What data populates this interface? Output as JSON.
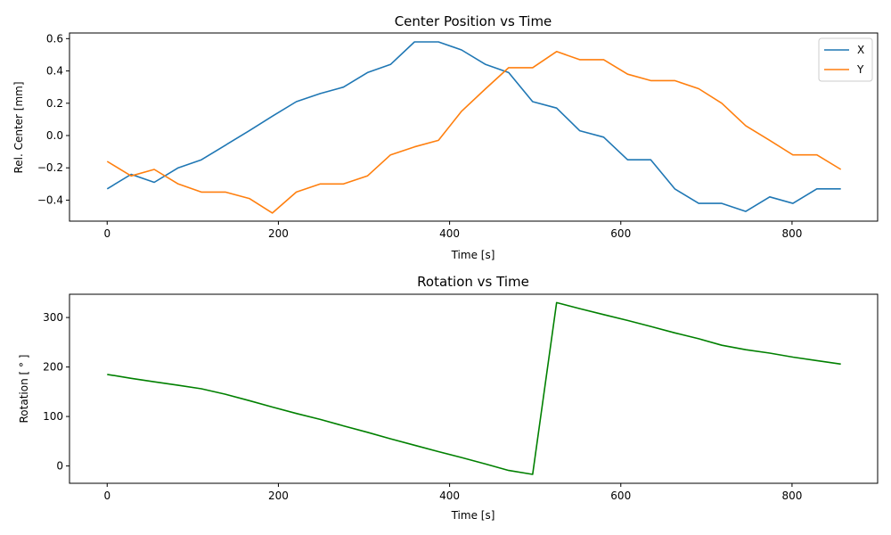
{
  "chart_data": [
    {
      "type": "line",
      "title": "Center Position vs Time",
      "xlabel": "Time [s]",
      "ylabel": "Rel. Center [mm]",
      "xlim": [
        -44,
        900
      ],
      "ylim": [
        -0.53,
        0.635
      ],
      "xticks": [
        0,
        200,
        400,
        600,
        800
      ],
      "yticks": [
        -0.4,
        -0.2,
        0.0,
        0.2,
        0.4,
        0.6
      ],
      "ytick_labels": [
        "−0.4",
        "−0.2",
        "0.0",
        "0.2",
        "0.4",
        "0.6"
      ],
      "legend_position": "top-right",
      "grid": false,
      "x": [
        0,
        28,
        55,
        83,
        110,
        138,
        166,
        193,
        221,
        249,
        276,
        304,
        331,
        359,
        387,
        414,
        442,
        469,
        497,
        525,
        552,
        580,
        608,
        635,
        663,
        691,
        718,
        746,
        774,
        801,
        829,
        857
      ],
      "series": [
        {
          "name": "X",
          "color": "#1f77b4",
          "values": [
            -0.33,
            -0.24,
            -0.29,
            -0.2,
            -0.15,
            -0.06,
            0.03,
            0.12,
            0.21,
            0.26,
            0.3,
            0.39,
            0.44,
            0.58,
            0.58,
            0.53,
            0.44,
            0.39,
            0.21,
            0.17,
            0.03,
            -0.01,
            -0.15,
            -0.15,
            -0.33,
            -0.42,
            -0.42,
            -0.47,
            -0.38,
            -0.42,
            -0.33,
            -0.33
          ]
        },
        {
          "name": "Y",
          "color": "#ff7f0e",
          "values": [
            -0.16,
            -0.25,
            -0.21,
            -0.3,
            -0.35,
            -0.35,
            -0.39,
            -0.48,
            -0.35,
            -0.3,
            -0.3,
            -0.25,
            -0.12,
            -0.07,
            -0.03,
            0.15,
            0.29,
            0.42,
            0.42,
            0.52,
            0.47,
            0.47,
            0.38,
            0.34,
            0.34,
            0.29,
            0.2,
            0.06,
            -0.03,
            -0.12,
            -0.12,
            -0.21
          ]
        }
      ]
    },
    {
      "type": "line",
      "title": "Rotation vs Time",
      "xlabel": "Time [s]",
      "ylabel": "Rotation [$^\\circ$]",
      "ylabel_display": "Rotation [ ° ]",
      "xlim": [
        -44,
        900
      ],
      "ylim": [
        -35,
        347
      ],
      "xticks": [
        0,
        200,
        400,
        600,
        800
      ],
      "yticks": [
        0,
        100,
        200,
        300
      ],
      "grid": false,
      "x": [
        0,
        28,
        55,
        83,
        110,
        138,
        166,
        193,
        221,
        249,
        276,
        304,
        331,
        359,
        387,
        414,
        442,
        469,
        497,
        525,
        552,
        580,
        608,
        635,
        663,
        691,
        718,
        746,
        774,
        801,
        829,
        857
      ],
      "series": [
        {
          "color": "#008000",
          "values": [
            185,
            177,
            170,
            163,
            156,
            145,
            132,
            119,
            106,
            94,
            81,
            68,
            55,
            42,
            29,
            17,
            4,
            -9,
            -17,
            330,
            318,
            306,
            294,
            282,
            269,
            257,
            244,
            235,
            228,
            220,
            213,
            206
          ]
        }
      ]
    }
  ]
}
